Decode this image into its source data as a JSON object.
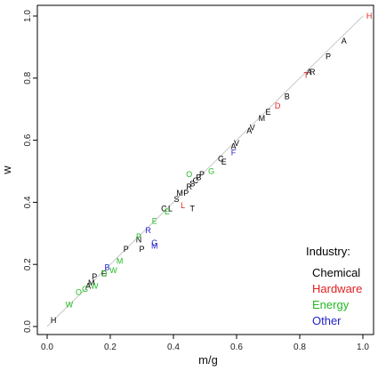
{
  "chart_data": {
    "type": "scatter",
    "title": "",
    "xlabel": "m/g",
    "ylabel": "w",
    "xlim": [
      0.0,
      1.05
    ],
    "ylim": [
      0.0,
      1.05
    ],
    "x_ticks": [
      {
        "value": 0.0,
        "label": "0.0"
      },
      {
        "value": 0.2,
        "label": "0.2"
      },
      {
        "value": 0.4,
        "label": "0.4"
      },
      {
        "value": 0.6,
        "label": "0.6"
      },
      {
        "value": 0.8,
        "label": "0.8"
      },
      {
        "value": 1.0,
        "label": "1.0"
      }
    ],
    "y_ticks": [
      {
        "value": 0.0,
        "label": "0.0"
      },
      {
        "value": 0.2,
        "label": "0.2"
      },
      {
        "value": 0.4,
        "label": "0.4"
      },
      {
        "value": 0.6,
        "label": "0.6"
      },
      {
        "value": 0.8,
        "label": "0.8"
      },
      {
        "value": 1.0,
        "label": "1.0"
      }
    ],
    "grid": false,
    "reference_line": {
      "type": "diagonal",
      "from": [
        0.0,
        0.0
      ],
      "to": [
        1.0,
        1.0
      ],
      "color": "#c8c8c8"
    },
    "legend": {
      "title": "Industry:",
      "placement": "bottom-right",
      "entries": [
        {
          "label": "Chemical",
          "color": "#000000"
        },
        {
          "label": "Hardware",
          "color": "#df2020"
        },
        {
          "label": "Energy",
          "color": "#22bb22"
        },
        {
          "label": "Other",
          "color": "#2222cc"
        }
      ]
    },
    "series": [
      {
        "name": "Chemical",
        "color": "#000000",
        "points": [
          {
            "x": 0.02,
            "y": 0.02,
            "label": "H"
          },
          {
            "x": 0.15,
            "y": 0.16,
            "label": "P"
          },
          {
            "x": 0.14,
            "y": 0.14,
            "label": "M"
          },
          {
            "x": 0.13,
            "y": 0.13,
            "label": "A"
          },
          {
            "x": 0.18,
            "y": 0.17,
            "label": "E"
          },
          {
            "x": 0.25,
            "y": 0.25,
            "label": "P"
          },
          {
            "x": 0.29,
            "y": 0.28,
            "label": "N"
          },
          {
            "x": 0.3,
            "y": 0.25,
            "label": "P"
          },
          {
            "x": 0.37,
            "y": 0.38,
            "label": "C"
          },
          {
            "x": 0.39,
            "y": 0.38,
            "label": "L"
          },
          {
            "x": 0.41,
            "y": 0.41,
            "label": "S"
          },
          {
            "x": 0.42,
            "y": 0.43,
            "label": "M"
          },
          {
            "x": 0.44,
            "y": 0.43,
            "label": "P"
          },
          {
            "x": 0.45,
            "y": 0.45,
            "label": "R"
          },
          {
            "x": 0.46,
            "y": 0.46,
            "label": "S"
          },
          {
            "x": 0.47,
            "y": 0.47,
            "label": "C"
          },
          {
            "x": 0.48,
            "y": 0.48,
            "label": "B"
          },
          {
            "x": 0.49,
            "y": 0.49,
            "label": "P"
          },
          {
            "x": 0.46,
            "y": 0.38,
            "label": "T"
          },
          {
            "x": 0.55,
            "y": 0.54,
            "label": "C"
          },
          {
            "x": 0.56,
            "y": 0.53,
            "label": "E"
          },
          {
            "x": 0.59,
            "y": 0.58,
            "label": "A"
          },
          {
            "x": 0.6,
            "y": 0.59,
            "label": "V"
          },
          {
            "x": 0.64,
            "y": 0.63,
            "label": "A"
          },
          {
            "x": 0.65,
            "y": 0.64,
            "label": "V"
          },
          {
            "x": 0.68,
            "y": 0.67,
            "label": "M"
          },
          {
            "x": 0.7,
            "y": 0.69,
            "label": "E"
          },
          {
            "x": 0.76,
            "y": 0.74,
            "label": "B"
          },
          {
            "x": 0.84,
            "y": 0.82,
            "label": "R"
          },
          {
            "x": 0.83,
            "y": 0.82,
            "label": "A"
          },
          {
            "x": 0.89,
            "y": 0.87,
            "label": "P"
          },
          {
            "x": 0.94,
            "y": 0.92,
            "label": "A"
          }
        ]
      },
      {
        "name": "Hardware",
        "color": "#df2020",
        "points": [
          {
            "x": 0.43,
            "y": 0.39,
            "label": "L"
          },
          {
            "x": 0.73,
            "y": 0.71,
            "label": "D"
          },
          {
            "x": 0.82,
            "y": 0.81,
            "label": "T"
          },
          {
            "x": 1.02,
            "y": 1.0,
            "label": "H"
          }
        ]
      },
      {
        "name": "Energy",
        "color": "#22bb22",
        "points": [
          {
            "x": 0.07,
            "y": 0.07,
            "label": "W"
          },
          {
            "x": 0.1,
            "y": 0.11,
            "label": "O"
          },
          {
            "x": 0.12,
            "y": 0.12,
            "label": "G"
          },
          {
            "x": 0.15,
            "y": 0.13,
            "label": "W"
          },
          {
            "x": 0.18,
            "y": 0.17,
            "label": "O"
          },
          {
            "x": 0.21,
            "y": 0.18,
            "label": "W"
          },
          {
            "x": 0.23,
            "y": 0.21,
            "label": "M"
          },
          {
            "x": 0.29,
            "y": 0.29,
            "label": "P"
          },
          {
            "x": 0.34,
            "y": 0.34,
            "label": "E"
          },
          {
            "x": 0.38,
            "y": 0.37,
            "label": "E"
          },
          {
            "x": 0.45,
            "y": 0.49,
            "label": "O"
          },
          {
            "x": 0.52,
            "y": 0.5,
            "label": "G"
          }
        ]
      },
      {
        "name": "Other",
        "color": "#2222cc",
        "points": [
          {
            "x": 0.19,
            "y": 0.19,
            "label": "B"
          },
          {
            "x": 0.32,
            "y": 0.31,
            "label": "R"
          },
          {
            "x": 0.34,
            "y": 0.27,
            "label": "G"
          },
          {
            "x": 0.34,
            "y": 0.26,
            "label": "M"
          },
          {
            "x": 0.59,
            "y": 0.56,
            "label": "F"
          }
        ]
      }
    ]
  }
}
